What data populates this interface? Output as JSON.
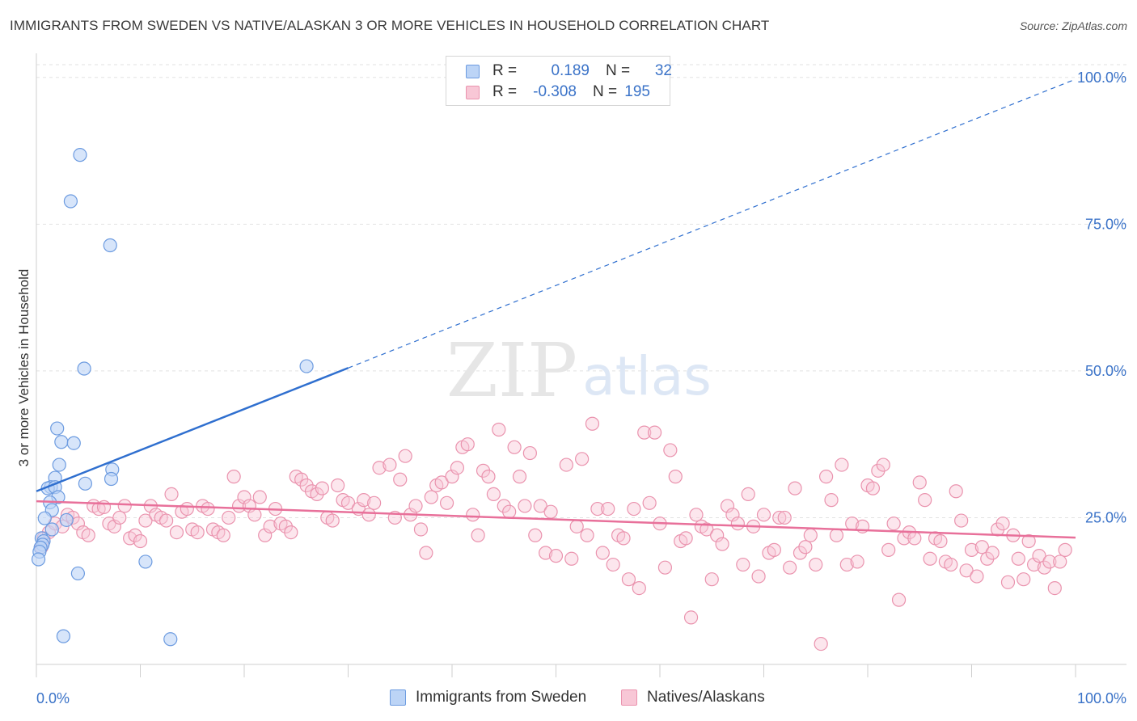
{
  "title": "IMMIGRANTS FROM SWEDEN VS NATIVE/ALASKAN 3 OR MORE VEHICLES IN HOUSEHOLD CORRELATION CHART",
  "source": "Source: ZipAtlas.com",
  "watermark": {
    "zip": "ZIP",
    "atlas": "atlas"
  },
  "legend": {
    "r_label": "R =",
    "n_label": "N =",
    "series1": {
      "r": "0.189",
      "n": "32"
    },
    "series2": {
      "r": "-0.308",
      "n": "195"
    }
  },
  "bottom_legend": {
    "series1": "Immigrants from Sweden",
    "series2": "Natives/Alaskans"
  },
  "chart_data": {
    "type": "scatter",
    "title": "IMMIGRANTS FROM SWEDEN VS NATIVE/ALASKAN 3 OR MORE VEHICLES IN HOUSEHOLD CORRELATION CHART",
    "xlabel": "",
    "ylabel": "3 or more Vehicles in Household",
    "xlim": [
      0,
      100
    ],
    "ylim": [
      0,
      103
    ],
    "x_tick_labels": [
      "0.0%",
      "100.0%"
    ],
    "y_ticks": [
      25,
      50,
      75,
      100
    ],
    "y_tick_labels": [
      "25.0%",
      "50.0%",
      "75.0%",
      "100.0%"
    ],
    "grid": true,
    "colors": {
      "series1": "#6c9be0",
      "series1_fill": "#bcd4f6",
      "series1_line": "#2f6fcf",
      "series2": "#ea93ae",
      "series2_fill": "#f8c7d6",
      "series2_line": "#e8709a",
      "axis_text": "#3b73c8"
    },
    "series": [
      {
        "name": "Immigrants from Sweden",
        "trend": {
          "x0": 0,
          "y0": 29.5,
          "x1": 30,
          "y1": 50.5,
          "dash_to_x": 100,
          "dash_to_y": 99.7
        },
        "points": [
          [
            4.2,
            86.8
          ],
          [
            3.3,
            78.9
          ],
          [
            7.1,
            71.4
          ],
          [
            4.6,
            50.4
          ],
          [
            26.0,
            50.8
          ],
          [
            2.0,
            40.2
          ],
          [
            2.4,
            37.9
          ],
          [
            3.6,
            37.7
          ],
          [
            2.2,
            34.0
          ],
          [
            7.3,
            33.2
          ],
          [
            1.8,
            31.8
          ],
          [
            1.4,
            30.2
          ],
          [
            7.2,
            31.6
          ],
          [
            1.1,
            30.0
          ],
          [
            1.8,
            30.2
          ],
          [
            4.7,
            30.8
          ],
          [
            2.1,
            28.5
          ],
          [
            1.3,
            27.6
          ],
          [
            1.5,
            26.3
          ],
          [
            0.8,
            24.9
          ],
          [
            2.9,
            24.6
          ],
          [
            1.5,
            23.0
          ],
          [
            0.5,
            21.5
          ],
          [
            0.7,
            21.0
          ],
          [
            0.6,
            20.4
          ],
          [
            0.4,
            19.9
          ],
          [
            0.3,
            19.2
          ],
          [
            0.2,
            17.9
          ],
          [
            10.5,
            17.5
          ],
          [
            4.0,
            15.5
          ],
          [
            2.6,
            4.8
          ],
          [
            12.9,
            4.3
          ]
        ]
      },
      {
        "name": "Natives/Alaskans",
        "trend": {
          "x0": 0,
          "y0": 27.8,
          "x1": 100,
          "y1": 21.6
        },
        "points": [
          [
            0.5,
            20.0
          ],
          [
            0.7,
            21.5
          ],
          [
            1.2,
            22.5
          ],
          [
            1.8,
            24.0
          ],
          [
            2.5,
            23.5
          ],
          [
            3.0,
            25.5
          ],
          [
            3.5,
            25.0
          ],
          [
            4.0,
            24.0
          ],
          [
            4.5,
            22.5
          ],
          [
            5.0,
            22.0
          ],
          [
            5.5,
            27.0
          ],
          [
            6.0,
            26.5
          ],
          [
            6.5,
            26.8
          ],
          [
            7.0,
            24.0
          ],
          [
            7.5,
            23.5
          ],
          [
            8.0,
            25.0
          ],
          [
            8.5,
            27.0
          ],
          [
            9.0,
            21.5
          ],
          [
            9.5,
            22.0
          ],
          [
            10.0,
            21.0
          ],
          [
            10.5,
            24.5
          ],
          [
            11.0,
            27.0
          ],
          [
            11.5,
            25.5
          ],
          [
            12.0,
            25.0
          ],
          [
            12.5,
            24.5
          ],
          [
            13.0,
            29.0
          ],
          [
            13.5,
            22.5
          ],
          [
            14.0,
            26.0
          ],
          [
            14.5,
            26.5
          ],
          [
            15.0,
            23.0
          ],
          [
            15.5,
            22.5
          ],
          [
            16.0,
            27.0
          ],
          [
            16.5,
            26.5
          ],
          [
            17.0,
            23.0
          ],
          [
            17.5,
            22.5
          ],
          [
            18.0,
            22.0
          ],
          [
            18.5,
            25.0
          ],
          [
            19.0,
            32.0
          ],
          [
            19.5,
            27.0
          ],
          [
            20.0,
            28.5
          ],
          [
            20.5,
            27.0
          ],
          [
            21.0,
            25.5
          ],
          [
            21.5,
            28.5
          ],
          [
            22.0,
            22.0
          ],
          [
            22.5,
            23.5
          ],
          [
            23.0,
            26.5
          ],
          [
            23.5,
            24.0
          ],
          [
            24.0,
            23.5
          ],
          [
            24.5,
            22.5
          ],
          [
            25.0,
            32.0
          ],
          [
            25.5,
            31.5
          ],
          [
            26.0,
            30.5
          ],
          [
            26.5,
            29.5
          ],
          [
            27.0,
            29.0
          ],
          [
            27.5,
            30.0
          ],
          [
            28.0,
            25.0
          ],
          [
            28.5,
            24.5
          ],
          [
            29.0,
            30.5
          ],
          [
            29.5,
            28.0
          ],
          [
            30.0,
            27.5
          ],
          [
            31.0,
            26.5
          ],
          [
            31.5,
            28.0
          ],
          [
            32.0,
            25.5
          ],
          [
            32.5,
            27.5
          ],
          [
            33.0,
            33.5
          ],
          [
            34.0,
            34.0
          ],
          [
            34.5,
            25.0
          ],
          [
            35.0,
            31.5
          ],
          [
            35.5,
            35.5
          ],
          [
            36.0,
            25.5
          ],
          [
            36.5,
            27.0
          ],
          [
            37.0,
            23.0
          ],
          [
            37.5,
            19.0
          ],
          [
            38.0,
            28.5
          ],
          [
            38.5,
            30.5
          ],
          [
            39.0,
            31.0
          ],
          [
            39.5,
            27.5
          ],
          [
            40.0,
            32.0
          ],
          [
            40.5,
            33.5
          ],
          [
            41.0,
            37.0
          ],
          [
            41.5,
            37.5
          ],
          [
            42.0,
            25.5
          ],
          [
            42.5,
            22.0
          ],
          [
            43.0,
            33.0
          ],
          [
            43.5,
            32.0
          ],
          [
            44.0,
            29.0
          ],
          [
            44.5,
            40.0
          ],
          [
            45.0,
            27.0
          ],
          [
            45.5,
            26.0
          ],
          [
            46.0,
            37.0
          ],
          [
            46.5,
            32.0
          ],
          [
            47.0,
            27.0
          ],
          [
            47.5,
            36.0
          ],
          [
            48.0,
            22.0
          ],
          [
            48.5,
            27.0
          ],
          [
            49.0,
            19.0
          ],
          [
            49.5,
            26.0
          ],
          [
            50.0,
            18.5
          ],
          [
            51.0,
            34.0
          ],
          [
            51.5,
            18.0
          ],
          [
            52.0,
            23.5
          ],
          [
            52.5,
            35.0
          ],
          [
            53.0,
            22.0
          ],
          [
            53.5,
            41.0
          ],
          [
            54.0,
            26.5
          ],
          [
            54.5,
            19.0
          ],
          [
            55.0,
            26.5
          ],
          [
            55.5,
            17.0
          ],
          [
            56.0,
            22.0
          ],
          [
            56.5,
            21.5
          ],
          [
            57.0,
            14.5
          ],
          [
            57.5,
            26.5
          ],
          [
            58.0,
            13.0
          ],
          [
            58.5,
            39.5
          ],
          [
            59.0,
            27.5
          ],
          [
            59.5,
            39.5
          ],
          [
            60.0,
            24.0
          ],
          [
            60.5,
            16.5
          ],
          [
            61.0,
            36.5
          ],
          [
            61.5,
            32.0
          ],
          [
            62.0,
            21.0
          ],
          [
            62.5,
            21.5
          ],
          [
            63.0,
            8.0
          ],
          [
            63.5,
            25.5
          ],
          [
            64.0,
            23.5
          ],
          [
            64.5,
            23.0
          ],
          [
            65.0,
            14.5
          ],
          [
            65.5,
            22.0
          ],
          [
            66.0,
            20.5
          ],
          [
            66.5,
            27.0
          ],
          [
            67.0,
            25.5
          ],
          [
            67.5,
            24.0
          ],
          [
            68.0,
            17.0
          ],
          [
            68.5,
            29.0
          ],
          [
            69.0,
            23.5
          ],
          [
            69.5,
            15.0
          ],
          [
            70.0,
            25.5
          ],
          [
            70.5,
            19.0
          ],
          [
            71.0,
            19.5
          ],
          [
            71.5,
            25.0
          ],
          [
            72.0,
            25.0
          ],
          [
            72.5,
            16.5
          ],
          [
            73.0,
            30.0
          ],
          [
            73.5,
            19.0
          ],
          [
            74.0,
            20.0
          ],
          [
            74.5,
            22.0
          ],
          [
            75.0,
            17.0
          ],
          [
            75.5,
            3.5
          ],
          [
            76.0,
            32.0
          ],
          [
            76.5,
            28.0
          ],
          [
            77.0,
            22.0
          ],
          [
            77.5,
            34.0
          ],
          [
            78.0,
            17.0
          ],
          [
            78.5,
            24.0
          ],
          [
            79.0,
            17.5
          ],
          [
            79.5,
            23.5
          ],
          [
            80.0,
            30.5
          ],
          [
            80.5,
            30.0
          ],
          [
            81.0,
            33.0
          ],
          [
            81.5,
            34.0
          ],
          [
            82.0,
            19.5
          ],
          [
            82.5,
            24.0
          ],
          [
            83.0,
            11.0
          ],
          [
            83.5,
            21.5
          ],
          [
            84.0,
            22.5
          ],
          [
            84.5,
            21.5
          ],
          [
            85.0,
            31.0
          ],
          [
            85.5,
            28.0
          ],
          [
            86.0,
            18.0
          ],
          [
            86.5,
            21.5
          ],
          [
            87.0,
            21.0
          ],
          [
            87.5,
            17.5
          ],
          [
            88.0,
            17.0
          ],
          [
            88.5,
            29.5
          ],
          [
            89.0,
            24.5
          ],
          [
            89.5,
            16.0
          ],
          [
            90.0,
            19.5
          ],
          [
            90.5,
            15.0
          ],
          [
            91.0,
            20.0
          ],
          [
            91.5,
            18.0
          ],
          [
            92.0,
            19.0
          ],
          [
            92.5,
            23.0
          ],
          [
            93.0,
            24.0
          ],
          [
            93.5,
            14.0
          ],
          [
            94.0,
            22.0
          ],
          [
            94.5,
            18.0
          ],
          [
            95.0,
            14.5
          ],
          [
            95.5,
            21.0
          ],
          [
            96.0,
            17.0
          ],
          [
            96.5,
            18.5
          ],
          [
            97.0,
            16.5
          ],
          [
            97.5,
            17.5
          ],
          [
            98.0,
            13.0
          ],
          [
            98.5,
            17.5
          ],
          [
            99.0,
            19.5
          ]
        ]
      }
    ]
  }
}
